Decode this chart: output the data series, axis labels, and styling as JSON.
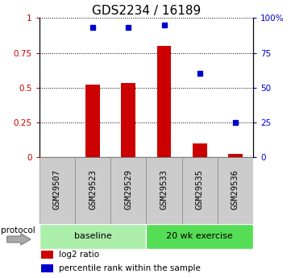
{
  "title": "GDS2234 / 16189",
  "samples": [
    "GSM29507",
    "GSM29523",
    "GSM29529",
    "GSM29533",
    "GSM29535",
    "GSM29536"
  ],
  "log2_ratio": [
    0.0,
    0.52,
    0.53,
    0.8,
    0.1,
    0.02
  ],
  "percentile_rank": [
    null,
    0.93,
    0.93,
    0.95,
    0.6,
    0.25
  ],
  "bar_color": "#cc0000",
  "dot_color": "#0000cc",
  "ylim_left": [
    0,
    1
  ],
  "ylim_right": [
    0,
    100
  ],
  "yticks_left": [
    0,
    0.25,
    0.5,
    0.75,
    1.0
  ],
  "ytick_labels_left": [
    "0",
    "0.25",
    "0.5",
    "0.75",
    "1"
  ],
  "yticks_right": [
    0,
    25,
    50,
    75,
    100
  ],
  "ytick_labels_right": [
    "0",
    "25",
    "50",
    "75",
    "100%"
  ],
  "groups": [
    {
      "label": "baseline",
      "start": 0,
      "end": 3,
      "color": "#aaeeaa"
    },
    {
      "label": "20 wk exercise",
      "start": 3,
      "end": 6,
      "color": "#55dd55"
    }
  ],
  "protocol_label": "protocol",
  "legend_items": [
    {
      "label": "log2 ratio",
      "color": "#cc0000"
    },
    {
      "label": "percentile rank within the sample",
      "color": "#0000cc"
    }
  ],
  "bar_width": 0.4,
  "title_fontsize": 11,
  "tick_fontsize": 7.5,
  "sample_bg_color": "#cccccc",
  "sample_border_color": "#888888"
}
